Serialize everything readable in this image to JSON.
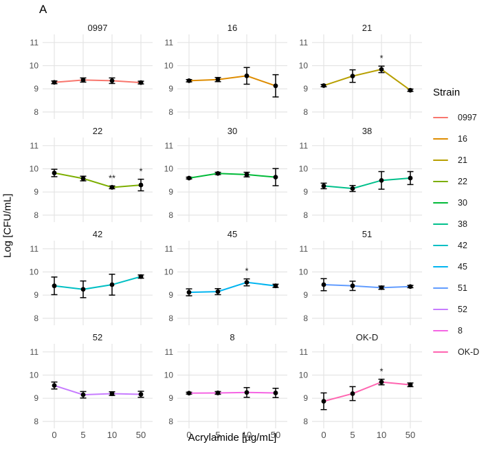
{
  "chart_data": {
    "type": "line",
    "panel_label": "A",
    "xlabel": "Acrylamide [µg/mL]",
    "ylabel": "Log [CFU/mL]",
    "legend_title": "Strain",
    "x_categories": [
      "0",
      "5",
      "10",
      "50"
    ],
    "yticks": [
      8,
      9,
      10,
      11
    ],
    "ylim": [
      7.7,
      11.35
    ],
    "grid": true,
    "legend_position": "right",
    "style": {
      "grid_color": "#E4E4E4",
      "tick_label_color": "#4d4d4d",
      "point_color": "#000000",
      "error_bar_color": "#000000",
      "star_color": "#1a1a1a",
      "background": "#ffffff"
    },
    "panels": [
      {
        "name": "0997",
        "color": "#F8766D",
        "values": [
          9.28,
          9.38,
          9.35,
          9.27
        ],
        "errors": [
          0.06,
          0.09,
          0.12,
          0.06
        ],
        "stars": [
          "",
          "",
          "",
          ""
        ]
      },
      {
        "name": "16",
        "color": "#DE8C00",
        "values": [
          9.35,
          9.4,
          9.56,
          9.13
        ],
        "errors": [
          0.05,
          0.09,
          0.36,
          0.48
        ],
        "stars": [
          "",
          "",
          "",
          ""
        ]
      },
      {
        "name": "21",
        "color": "#B79F00",
        "values": [
          9.14,
          9.55,
          9.84,
          8.94
        ],
        "errors": [
          0.05,
          0.27,
          0.14,
          0.05
        ],
        "stars": [
          "",
          "",
          "*",
          ""
        ]
      },
      {
        "name": "22",
        "color": "#7CAE00",
        "values": [
          9.82,
          9.58,
          9.2,
          9.3
        ],
        "errors": [
          0.16,
          0.1,
          0.06,
          0.25
        ],
        "stars": [
          "",
          "",
          "**",
          "*"
        ]
      },
      {
        "name": "30",
        "color": "#00BA38",
        "values": [
          9.6,
          9.8,
          9.75,
          9.64
        ],
        "errors": [
          0.04,
          0.05,
          0.1,
          0.37
        ],
        "stars": [
          "",
          "",
          "",
          ""
        ]
      },
      {
        "name": "38",
        "color": "#00C08B",
        "values": [
          9.26,
          9.15,
          9.5,
          9.6
        ],
        "errors": [
          0.12,
          0.13,
          0.38,
          0.28
        ],
        "stars": [
          "",
          "",
          "",
          ""
        ]
      },
      {
        "name": "42",
        "color": "#00BFC4",
        "values": [
          9.4,
          9.25,
          9.45,
          9.8
        ],
        "errors": [
          0.38,
          0.36,
          0.45,
          0.07
        ],
        "stars": [
          "",
          "",
          "",
          ""
        ]
      },
      {
        "name": "45",
        "color": "#00B4F0",
        "values": [
          9.12,
          9.15,
          9.55,
          9.4
        ],
        "errors": [
          0.15,
          0.13,
          0.15,
          0.07
        ],
        "stars": [
          "",
          "",
          "*",
          ""
        ]
      },
      {
        "name": "51",
        "color": "#619CFF",
        "values": [
          9.45,
          9.4,
          9.32,
          9.37
        ],
        "errors": [
          0.26,
          0.2,
          0.07,
          0.05
        ],
        "stars": [
          "",
          "",
          "",
          ""
        ]
      },
      {
        "name": "52",
        "color": "#C77CFF",
        "values": [
          9.55,
          9.15,
          9.2,
          9.17
        ],
        "errors": [
          0.15,
          0.14,
          0.08,
          0.13
        ],
        "stars": [
          "",
          "",
          "",
          ""
        ]
      },
      {
        "name": "8",
        "color": "#F564E3",
        "values": [
          9.22,
          9.23,
          9.25,
          9.23
        ],
        "errors": [
          0.04,
          0.06,
          0.21,
          0.2
        ],
        "stars": [
          "",
          "",
          "",
          ""
        ]
      },
      {
        "name": "OK-D",
        "color": "#FF64B0",
        "values": [
          8.87,
          9.2,
          9.7,
          9.58
        ],
        "errors": [
          0.36,
          0.3,
          0.12,
          0.08
        ],
        "stars": [
          "",
          "",
          "*",
          ""
        ]
      }
    ]
  }
}
